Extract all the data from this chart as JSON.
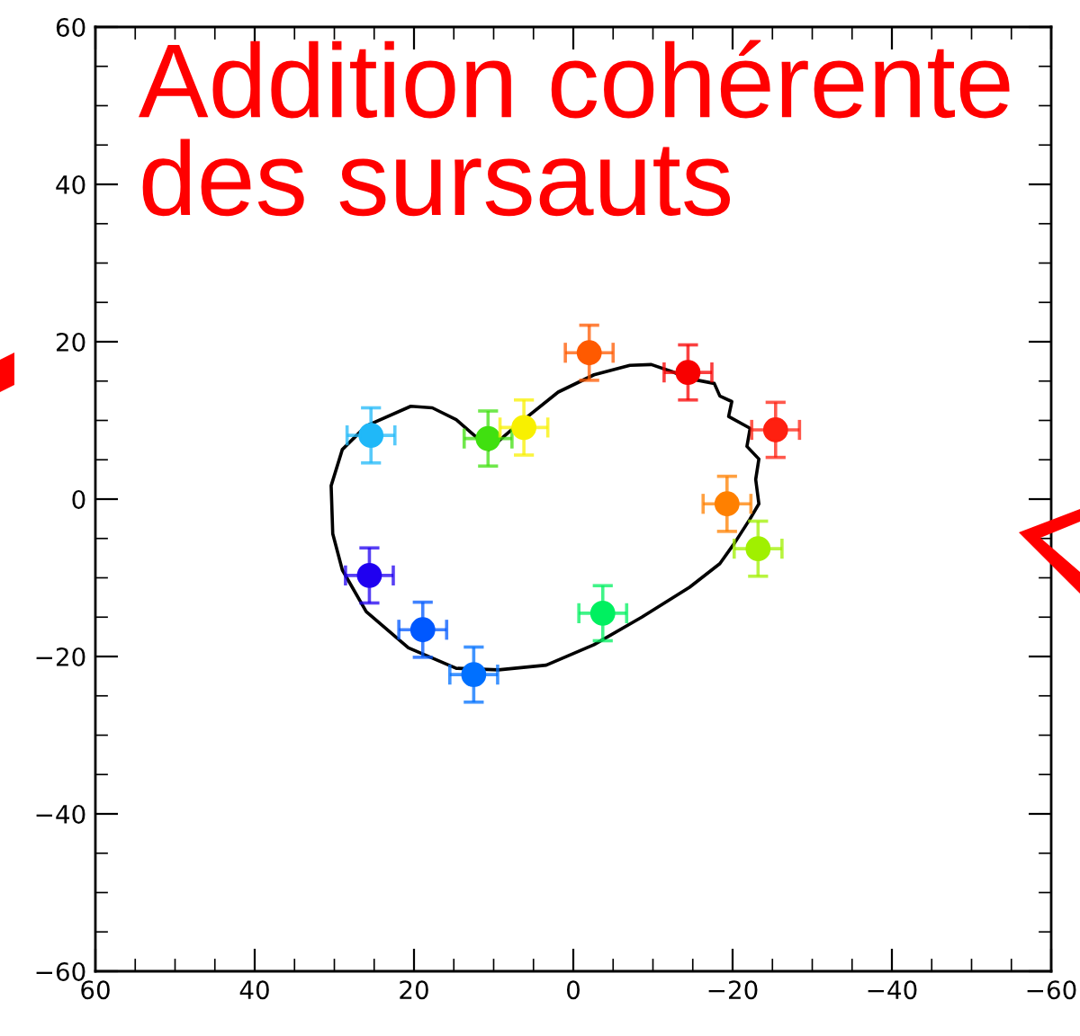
{
  "chart_data": {
    "type": "scatter",
    "title": "Addition cohérente\ndes sursauts",
    "xlim": [
      60,
      -60
    ],
    "xticks": [
      60,
      40,
      20,
      0,
      -20,
      -40,
      -60
    ],
    "ylim": [
      -60,
      60
    ],
    "yticks": [
      -60,
      -40,
      -20,
      0,
      20,
      40,
      60
    ],
    "grid": false,
    "legend": false,
    "series": [
      {
        "type": "line",
        "color": "#000000",
        "marker": "none",
        "x": [
          10.6,
          7.2,
          1.9,
          -2.6,
          -7.1,
          -9.8,
          -12.4,
          -14.6,
          -17.7,
          -18.4,
          -19.9,
          -19.5,
          -22.2,
          -21.8,
          -23.3,
          -22.9,
          -23.3,
          -22.2,
          -20.3,
          -18.4,
          -14.6,
          -8.6,
          -2.6,
          3.4,
          9.4,
          14.7,
          20.7,
          26.0,
          29.0,
          30.2,
          30.4,
          29.0,
          26.0,
          20.4,
          17.7,
          14.7,
          12.1
        ],
        "values": [
          6.3,
          9.3,
          13.6,
          15.8,
          17.0,
          17.1,
          16.2,
          15.3,
          14.7,
          13.1,
          12.4,
          10.5,
          9.0,
          6.7,
          5.1,
          2.5,
          -0.6,
          -2.5,
          -5.5,
          -8.2,
          -11.2,
          -15.0,
          -18.5,
          -21.1,
          -21.7,
          -21.5,
          -18.9,
          -14.3,
          -9.0,
          -4.4,
          1.7,
          6.3,
          9.3,
          11.8,
          11.6,
          10.1,
          7.8
        ]
      },
      {
        "marker": "circle",
        "x": [
          25.4,
          10.7,
          6.2,
          -2,
          -14.4,
          -25.4,
          -19.3,
          -23.2,
          -3.7,
          25.6,
          18.9,
          12.5
        ],
        "values": [
          8.1,
          7.7,
          9.1,
          18.6,
          16.1,
          8.8,
          -0.6,
          -6.3,
          -14.5,
          -9.7,
          -16.6,
          -22.3
        ],
        "colors": [
          "#20b8f8",
          "#40e010",
          "#f8f000",
          "#ff5a00",
          "#f80000",
          "#ff2010",
          "#ff8000",
          "#a0f000",
          "#00f060",
          "#2000f0",
          "#0058ff",
          "#0070ff"
        ],
        "errors": [
          3.5,
          3.5,
          3.5,
          3.5,
          3.5,
          3.5,
          3.5,
          3.5,
          3.5,
          3.5,
          3.5,
          3.5
        ],
        "xerrors": [
          3,
          3,
          3,
          3,
          3,
          3,
          3,
          3,
          3,
          3,
          3,
          3
        ]
      }
    ]
  }
}
